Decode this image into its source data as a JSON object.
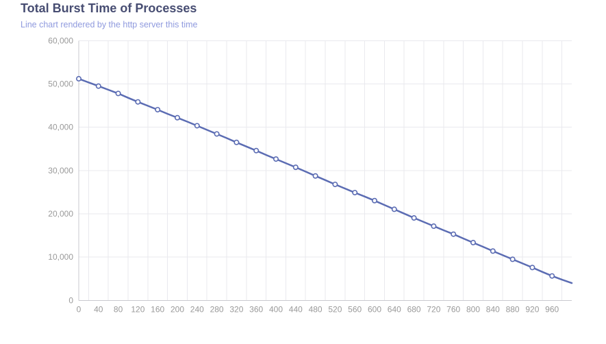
{
  "header": {
    "title": "Total Burst Time of Processes",
    "subtitle": "Line chart rendered by the http server this time",
    "title_color": "#474d72",
    "subtitle_color": "#8f9ade"
  },
  "chart_data": {
    "type": "line",
    "title": "Total Burst Time of Processes",
    "subtitle": "Line chart rendered by the http server this time",
    "xlabel": "",
    "ylabel": "",
    "xlim": [
      0,
      1000
    ],
    "ylim": [
      0,
      60000
    ],
    "grid": true,
    "legend": "none",
    "x": [
      0,
      20,
      40,
      60,
      80,
      100,
      120,
      140,
      160,
      180,
      200,
      220,
      240,
      260,
      280,
      300,
      320,
      340,
      360,
      380,
      400,
      420,
      440,
      460,
      480,
      500,
      520,
      540,
      560,
      580,
      600,
      620,
      640,
      660,
      680,
      700,
      720,
      740,
      760,
      780,
      800,
      820,
      840,
      860,
      880,
      900,
      920,
      940,
      960,
      980,
      1000
    ],
    "values": [
      51200,
      50350,
      49500,
      48650,
      47800,
      46800,
      45850,
      44950,
      44050,
      43100,
      42200,
      41300,
      40350,
      39400,
      38450,
      37500,
      36500,
      35550,
      34600,
      33600,
      32650,
      31700,
      30750,
      29750,
      28750,
      27800,
      26800,
      25850,
      24900,
      24000,
      23050,
      22050,
      21050,
      20050,
      19050,
      18100,
      17150,
      16200,
      15300,
      14300,
      13350,
      12400,
      11400,
      10450,
      9500,
      8550,
      7600,
      6600,
      5650,
      4800,
      4000
    ],
    "x_tick_labels_shown": [
      0,
      40,
      80,
      120,
      160,
      200,
      240,
      280,
      320,
      360,
      400,
      440,
      480,
      520,
      560,
      600,
      640,
      680,
      720,
      760,
      800,
      840,
      880,
      920,
      960
    ],
    "y_ticks": [
      0,
      10000,
      20000,
      30000,
      40000,
      50000,
      60000
    ],
    "marker": "hollow-circle",
    "marker_rule": "symbols shown only at labeled x ticks",
    "colors": {
      "line": "#5b6cb3",
      "marker_fill": "#ffffff",
      "axis_label": "#999999",
      "grid_line": "#e9e9ee",
      "axis_line": "#c9c9cf"
    }
  }
}
